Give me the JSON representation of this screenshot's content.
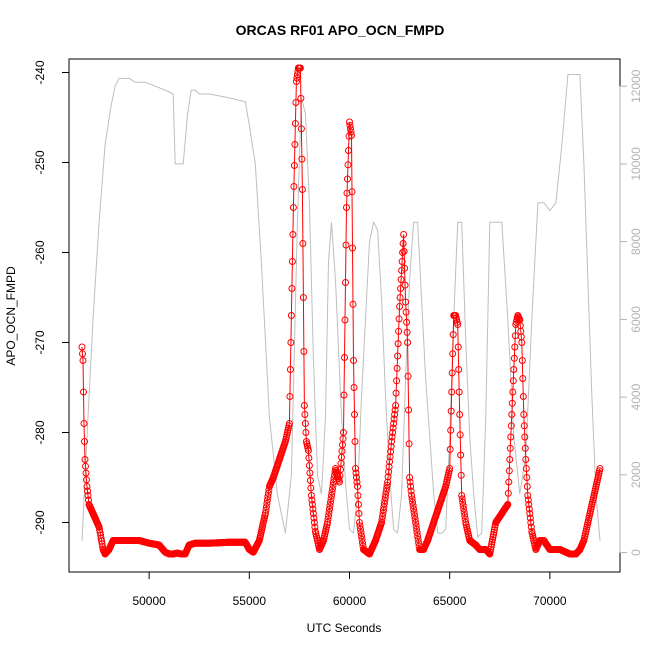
{
  "chart_data": {
    "type": "scatter",
    "title": "ORCAS RF01 APO_OCN_FMPD",
    "xlabel": "UTC Seconds",
    "ylabel": "APO_OCN_FMPD",
    "xlim": [
      46000,
      73500
    ],
    "ylim": [
      -295.5,
      -238.5
    ],
    "y2lim": [
      -500,
      12700
    ],
    "x_ticks": [
      50000,
      55000,
      60000,
      65000,
      70000
    ],
    "x_tick_labels": [
      "50000",
      "55000",
      "60000",
      "65000",
      "70000"
    ],
    "y_ticks": [
      -290,
      -280,
      -270,
      -260,
      -250,
      -240
    ],
    "y_tick_labels": [
      "-290",
      "-280",
      "-270",
      "-260",
      "-250",
      "-240"
    ],
    "y2_ticks": [
      0,
      2000,
      4000,
      6000,
      8000,
      10000,
      12000
    ],
    "y2_tick_labels": [
      "0",
      "2000",
      "4000",
      "6000",
      "8000",
      "10000",
      "12000"
    ],
    "grid": false,
    "series": [
      {
        "kind": "points",
        "axis": "left",
        "color": "#ff0000",
        "marker": "open-circle",
        "x": [
          46650,
          46700,
          46750,
          46800,
          46900,
          47000,
          47200,
          47500,
          47700,
          47800,
          48000,
          48200,
          48500,
          49000,
          49500,
          50000,
          50500,
          50800,
          51000,
          51200,
          51400,
          51600,
          51800,
          52000,
          52300,
          53000,
          54000,
          54800,
          55000,
          55200,
          55500,
          55800,
          56000,
          56200,
          56500,
          56800,
          57000,
          57200,
          57350,
          57450,
          57550,
          57650,
          57750,
          57850,
          57950,
          58100,
          58300,
          58500,
          58700,
          58900,
          59100,
          59300,
          59500,
          59700,
          59850,
          60000,
          60100,
          60200,
          60300,
          60400,
          60500,
          60700,
          61000,
          61300,
          61600,
          61900,
          62100,
          62300,
          62500,
          62700,
          62800,
          62900,
          63000,
          63100,
          63300,
          63500,
          63700,
          63900,
          64200,
          64500,
          64800,
          65000,
          65200,
          65300,
          65400,
          65500,
          65600,
          65800,
          66000,
          66300,
          66500,
          66800,
          67000,
          67300,
          67600,
          67900,
          68100,
          68300,
          68400,
          68500,
          68600,
          68700,
          68800,
          68900,
          69100,
          69300,
          69500,
          69700,
          70000,
          70500,
          71000,
          71300,
          71500,
          71700,
          71900,
          72100,
          72300,
          72500
        ],
        "y": [
          -270.5,
          -272,
          -279,
          -283,
          -286,
          -288,
          -289,
          -290.5,
          -293,
          -293.5,
          -293,
          -292,
          -292,
          -292,
          -292,
          -292.3,
          -292.5,
          -293.3,
          -293.5,
          -293.5,
          -293.4,
          -293.5,
          -293.5,
          -292.5,
          -292.3,
          -292.3,
          -292.2,
          -292.2,
          -293,
          -293.3,
          -292,
          -289,
          -286,
          -285,
          -283,
          -281,
          -279,
          -255,
          -241,
          -239.5,
          -239.5,
          -253,
          -277,
          -281,
          -282,
          -287,
          -291,
          -293,
          -292,
          -290,
          -287,
          -284,
          -285.5,
          -280,
          -255,
          -245.5,
          -247,
          -272,
          -284,
          -286,
          -290,
          -293,
          -293.5,
          -292,
          -290,
          -285.5,
          -281,
          -277,
          -266,
          -258,
          -265.5,
          -270,
          -285,
          -287,
          -290,
          -293,
          -293,
          -292,
          -290,
          -288,
          -286,
          -284,
          -267,
          -267,
          -268,
          -278,
          -287,
          -290,
          -292,
          -292.5,
          -293,
          -293,
          -293.5,
          -290,
          -289,
          -288,
          -278,
          -268,
          -267,
          -267.5,
          -270,
          -278,
          -283,
          -287,
          -291,
          -293,
          -292,
          -292,
          -293,
          -293,
          -293.5,
          -293.5,
          -293,
          -292,
          -290,
          -288,
          -286,
          -284
        ]
      },
      {
        "kind": "line",
        "axis": "right",
        "color": "#bebebe",
        "x": [
          46650,
          46900,
          47200,
          47500,
          47800,
          48100,
          48300,
          48500,
          48700,
          49000,
          49300,
          49800,
          50300,
          50800,
          51200,
          51300,
          51500,
          51700,
          51900,
          52100,
          52300,
          52500,
          53000,
          54000,
          54800,
          55000,
          55300,
          55600,
          56000,
          56400,
          56800,
          57100,
          57400,
          57600,
          57800,
          58000,
          58200,
          58400,
          58600,
          58800,
          58950,
          59100,
          59300,
          59600,
          59800,
          60000,
          60200,
          60400,
          60600,
          60800,
          61000,
          61200,
          61400,
          61600,
          61800,
          62000,
          62200,
          62400,
          62600,
          62800,
          63000,
          63200,
          63400,
          63600,
          63800,
          64000,
          64200,
          64400,
          64600,
          64800,
          65000,
          65200,
          65400,
          65600,
          65800,
          66000,
          66200,
          66400,
          66600,
          66800,
          67000,
          67300,
          67600,
          67900,
          68200,
          68500,
          68800,
          69100,
          69400,
          69700,
          70000,
          70300,
          70600,
          70900,
          71200,
          71500,
          71700,
          71900,
          72100,
          72300,
          72500
        ],
        "y": [
          300,
          3000,
          6000,
          8500,
          10500,
          11500,
          12000,
          12200,
          12200,
          12200,
          12100,
          12100,
          12000,
          11900,
          11800,
          10000,
          10000,
          10000,
          11200,
          11900,
          11900,
          11800,
          11800,
          11700,
          11600,
          11000,
          10000,
          7500,
          3500,
          1500,
          500,
          2000,
          8500,
          11700,
          11300,
          9000,
          5000,
          2000,
          1500,
          3500,
          7500,
          8500,
          7000,
          3500,
          1800,
          600,
          500,
          1500,
          4000,
          6000,
          8000,
          8500,
          8300,
          6500,
          4000,
          2000,
          600,
          500,
          1500,
          4500,
          7000,
          8500,
          8500,
          6500,
          4500,
          3000,
          1500,
          500,
          500,
          600,
          3000,
          6000,
          8500,
          8500,
          5500,
          3000,
          1500,
          400,
          500,
          3500,
          8500,
          8500,
          8500,
          6000,
          3000,
          1500,
          2500,
          6000,
          9000,
          9000,
          8800,
          9000,
          10500,
          12300,
          12300,
          12300,
          10000,
          7000,
          4000,
          1500,
          300
        ]
      }
    ]
  }
}
